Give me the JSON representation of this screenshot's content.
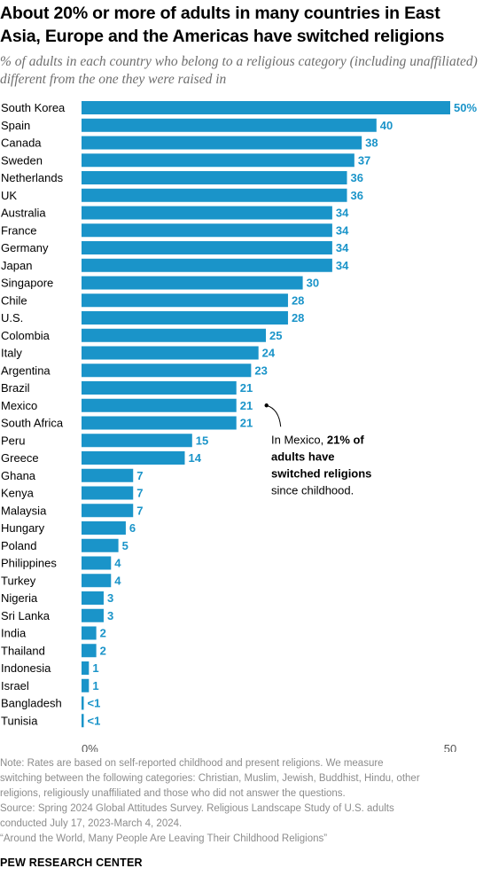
{
  "title": "About 20% or more of adults in many countries in East Asia, Europe and the Americas have switched religions",
  "subtitle": "% of adults in each country who belong to a religious category (including unaffiliated) different from the one they were raised in",
  "chart_data": {
    "type": "bar",
    "orientation": "horizontal",
    "categories": [
      "South Korea",
      "Spain",
      "Canada",
      "Sweden",
      "Netherlands",
      "UK",
      "Australia",
      "France",
      "Germany",
      "Japan",
      "Singapore",
      "Chile",
      "U.S.",
      "Colombia",
      "Italy",
      "Argentina",
      "Brazil",
      "Mexico",
      "South Africa",
      "Peru",
      "Greece",
      "Ghana",
      "Kenya",
      "Malaysia",
      "Hungary",
      "Poland",
      "Philippines",
      "Turkey",
      "Nigeria",
      "Sri Lanka",
      "India",
      "Thailand",
      "Indonesia",
      "Israel",
      "Bangladesh",
      "Tunisia"
    ],
    "values": [
      50,
      40,
      38,
      37,
      36,
      36,
      34,
      34,
      34,
      34,
      30,
      28,
      28,
      25,
      24,
      23,
      21,
      21,
      21,
      15,
      14,
      7,
      7,
      7,
      6,
      5,
      4,
      4,
      3,
      3,
      2,
      2,
      1,
      1,
      0.3,
      0.3
    ],
    "value_labels": [
      "50%",
      "40",
      "38",
      "37",
      "36",
      "36",
      "34",
      "34",
      "34",
      "34",
      "30",
      "28",
      "28",
      "25",
      "24",
      "23",
      "21",
      "21",
      "21",
      "15",
      "14",
      "7",
      "7",
      "7",
      "6",
      "5",
      "4",
      "4",
      "3",
      "3",
      "2",
      "2",
      "1",
      "1",
      "<1",
      "<1"
    ],
    "x_ticks": [
      "0%",
      "50"
    ],
    "xlim": [
      0,
      50
    ],
    "bar_color": "#1a94c9",
    "label_color": "#1a94c9",
    "annotation": {
      "category": "Mexico",
      "lines": [
        [
          {
            "text": "In Mexico, ",
            "bold": false
          },
          {
            "text": "21% of",
            "bold": true
          }
        ],
        [
          {
            "text": "adults have",
            "bold": true
          }
        ],
        [
          {
            "text": "switched religions",
            "bold": true
          }
        ],
        [
          {
            "text": "since childhood.",
            "bold": false
          }
        ]
      ]
    }
  },
  "note_lines": [
    "Note: Rates are based on self-reported childhood and present religions. We measure",
    "switching between the following categories: Christian, Muslim, Jewish, Buddhist, Hindu, other",
    "religions, religiously unaffiliated and those who did not answer the questions.",
    "Source: Spring 2024 Global Attitudes Survey. Religious Landscape Study of U.S. adults",
    "conducted July 17, 2023-March 4, 2024.",
    "“Around the World, Many People Are Leaving Their Childhood Religions”"
  ],
  "logo": "PEW RESEARCH CENTER"
}
